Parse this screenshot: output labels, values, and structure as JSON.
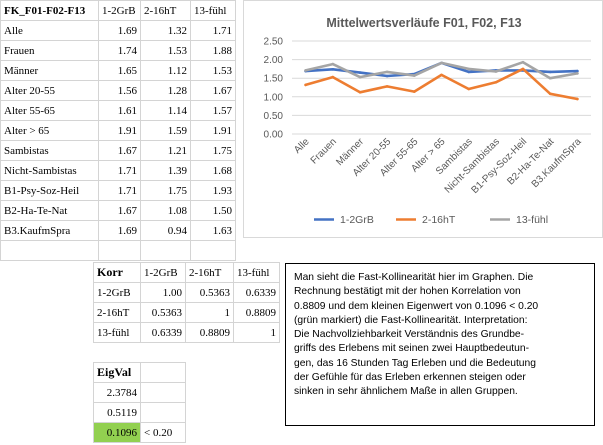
{
  "main_table": {
    "header": [
      "FK_F01-F02-F13",
      "1-2GrB",
      "2-16hT",
      "13-fühl"
    ],
    "rows": [
      {
        "label": "Alle",
        "v": [
          "1.69",
          "1.32",
          "1.71"
        ]
      },
      {
        "label": "Frauen",
        "v": [
          "1.74",
          "1.53",
          "1.88"
        ]
      },
      {
        "label": "Männer",
        "v": [
          "1.65",
          "1.12",
          "1.53"
        ]
      },
      {
        "label": "Alter 20-55",
        "v": [
          "1.56",
          "1.28",
          "1.67"
        ]
      },
      {
        "label": "Alter 55-65",
        "v": [
          "1.61",
          "1.14",
          "1.57"
        ]
      },
      {
        "label": "Alter > 65",
        "v": [
          "1.91",
          "1.59",
          "1.91"
        ]
      },
      {
        "label": "Sambistas",
        "v": [
          "1.67",
          "1.21",
          "1.75"
        ]
      },
      {
        "label": "Nicht-Sambistas",
        "v": [
          "1.71",
          "1.39",
          "1.68"
        ]
      },
      {
        "label": "B1-Psy-Soz-Heil",
        "v": [
          "1.71",
          "1.75",
          "1.93"
        ]
      },
      {
        "label": "B2-Ha-Te-Nat",
        "v": [
          "1.67",
          "1.08",
          "1.50"
        ]
      },
      {
        "label": "B3.KaufmSpra",
        "v": [
          "1.69",
          "0.94",
          "1.63"
        ]
      }
    ]
  },
  "korr_table": {
    "header": [
      "Korr",
      "1-2GrB",
      "2-16hT",
      "13-fühl"
    ],
    "rows": [
      {
        "label": "1-2GrB",
        "v": [
          "1.00",
          "0.5363",
          "0.6339"
        ]
      },
      {
        "label": "2-16hT",
        "v": [
          "0.5363",
          "1",
          "0.8809"
        ]
      },
      {
        "label": "13-fühl",
        "v": [
          "0.6339",
          "0.8809",
          "1"
        ]
      }
    ]
  },
  "eigval": {
    "title": "EigVal",
    "values": [
      "2.3784",
      "0.5119",
      "0.1096"
    ],
    "note": "< 0.20"
  },
  "colors": {
    "green_highlight": "#92d050"
  },
  "chart_data": {
    "type": "line",
    "title": "Mittelwertsverläufe F01, F02, F13",
    "categories": [
      "Alle",
      "Frauen",
      "Männer",
      "Alter 20-55",
      "Alter 55-65",
      "Alter > 65",
      "Sambistas",
      "Nicht-Sambistas",
      "B1-Psy-Soz-Heil",
      "B2-Ha-Te-Nat",
      "B3.KaufmSpra"
    ],
    "series": [
      {
        "name": "1-2GrB",
        "color": "#4472c4",
        "values": [
          1.69,
          1.74,
          1.65,
          1.56,
          1.61,
          1.91,
          1.67,
          1.71,
          1.71,
          1.67,
          1.69
        ]
      },
      {
        "name": "2-16hT",
        "color": "#ed7d31",
        "values": [
          1.32,
          1.53,
          1.12,
          1.28,
          1.14,
          1.59,
          1.21,
          1.39,
          1.75,
          1.08,
          0.94
        ]
      },
      {
        "name": "13-fühl",
        "color": "#a5a5a5",
        "values": [
          1.71,
          1.88,
          1.53,
          1.67,
          1.57,
          1.91,
          1.75,
          1.68,
          1.93,
          1.5,
          1.63
        ]
      }
    ],
    "ylim": [
      0,
      2.5
    ],
    "yticks": [
      "0.00",
      "0.50",
      "1.00",
      "1.50",
      "2.00",
      "2.50"
    ],
    "grid": true,
    "legend": "bottom"
  },
  "note_lines": [
    "Man sieht die Fast-Kollinearität hier im Graphen. Die",
    "Rechnung bestätigt mit der hohen Korrelation von",
    "0.8809 und dem kleinen Eigenwert von 0.1096 < 0.20",
    "(grün markiert) die Fast-Kollinearität. Interpretation:",
    "Die Nachvollziehbarkeit Verständnis des Grundbe-",
    "griffs des Erlebens mit seinen zwei Hauptbedeutun-",
    "gen, das 16 Stunden Tag Erleben und die Bedeutung",
    "der Gefühle für das Erleben erkennen steigen oder",
    "sinken in sehr ähnlichem Maße in allen Gruppen."
  ]
}
